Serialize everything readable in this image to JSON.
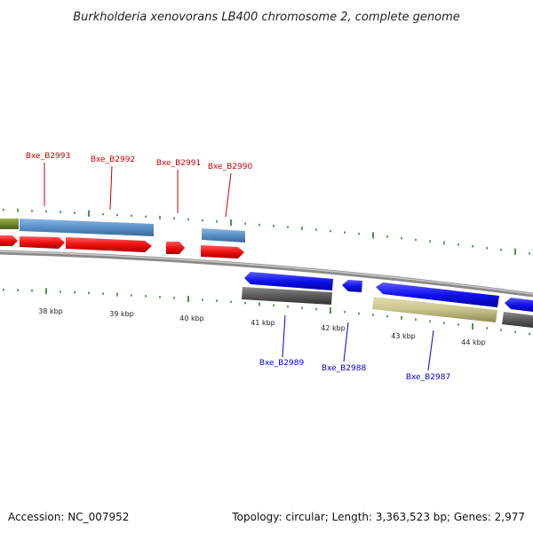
{
  "title": "Burkholderia xenovorans LB400 chromosome 2, complete genome",
  "footer": {
    "accession": "Accession: NC_007952",
    "summary": "Topology: circular; Length: 3,363,523 bp; Genes: 2,977"
  },
  "colors": {
    "forward_label": "#cc0000",
    "reverse_label": "#0000cc",
    "tick": "#1a7a1a",
    "backbone": "#8a8a8a",
    "red_cds": "#ee1111",
    "blue_cds": "#1111ee",
    "steel": "#5b8fc7",
    "olive": "#6f8a2a",
    "gray": "#5a5a5a",
    "khaki": "#c9c48a"
  },
  "kbp_labels": [
    "38 kbp",
    "39 kbp",
    "40 kbp",
    "41 kbp",
    "42 kbp",
    "43 kbp",
    "44 kbp"
  ],
  "forward_genes": [
    {
      "label": "Bxe_B2993"
    },
    {
      "label": "Bxe_B2992"
    },
    {
      "label": "Bxe_B2991"
    },
    {
      "label": "Bxe_B2990"
    }
  ],
  "reverse_genes": [
    {
      "label": "Bxe_B2989"
    },
    {
      "label": "Bxe_B2988"
    },
    {
      "label": "Bxe_B2987"
    }
  ]
}
